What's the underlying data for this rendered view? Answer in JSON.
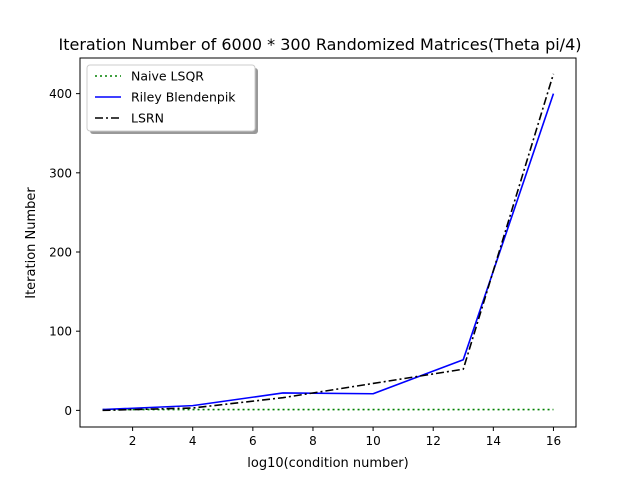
{
  "chart_data": {
    "type": "line",
    "title": "Iteration Number of 6000 * 300 Randomized Matrices(Theta pi/4)",
    "xlabel": "log10(condition number)",
    "ylabel": "Iteration Number",
    "xlim": [
      0.25,
      16.75
    ],
    "ylim": [
      -21,
      445
    ],
    "x_ticks": [
      2,
      4,
      6,
      8,
      10,
      12,
      14,
      16
    ],
    "y_ticks": [
      0,
      100,
      200,
      300,
      400
    ],
    "grid": false,
    "legend_position": "top-left",
    "series": [
      {
        "name": "Naive LSQR",
        "color": "#008000",
        "style": "dotted",
        "x": [
          1,
          4,
          7,
          10,
          13,
          16
        ],
        "y": [
          1,
          1,
          1,
          1,
          1,
          1
        ]
      },
      {
        "name": "Riley Blendenpik",
        "color": "#0000ff",
        "style": "solid",
        "x": [
          1,
          4,
          7,
          10,
          13,
          16
        ],
        "y": [
          1,
          6,
          22,
          21,
          64,
          400
        ]
      },
      {
        "name": "LSRN",
        "color": "#000000",
        "style": "dashdot",
        "x": [
          1,
          4,
          7,
          10,
          13,
          16
        ],
        "y": [
          0,
          3,
          16,
          34,
          52,
          425
        ]
      }
    ]
  }
}
